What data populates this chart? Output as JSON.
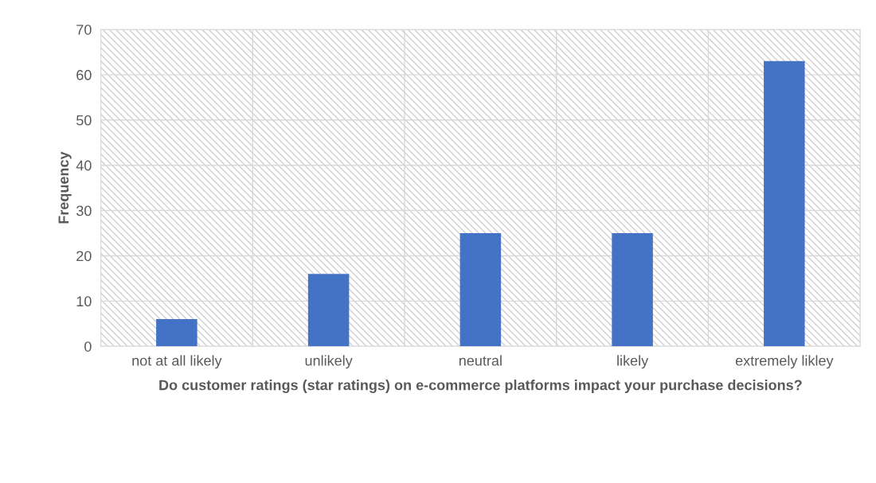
{
  "chart_data": {
    "type": "bar",
    "xlabel": "Do customer ratings (star ratings) on e-commerce platforms impact your purchase decisions?",
    "ylabel": "Frequency",
    "categories": [
      "not at all likely",
      "unlikely",
      "neutral",
      "likely",
      "extremely likley"
    ],
    "values": [
      6,
      16,
      25,
      25,
      63
    ],
    "color": "#4472c4",
    "ylim": [
      0,
      70
    ],
    "yticks": [
      0,
      10,
      20,
      30,
      40,
      50,
      60,
      70
    ],
    "grid": true
  }
}
